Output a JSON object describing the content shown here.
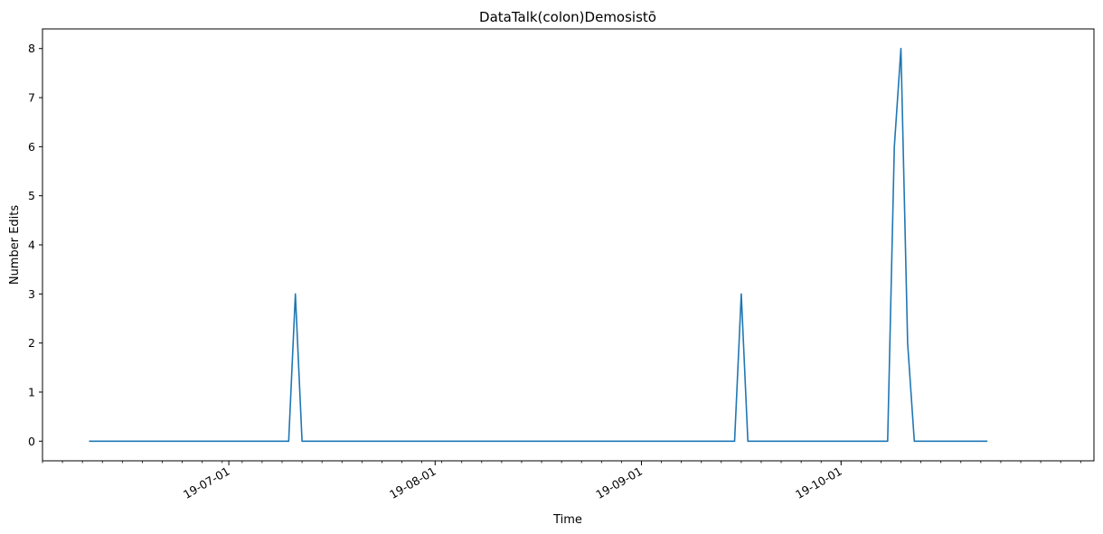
{
  "chart_data": {
    "type": "line",
    "title": "DataTalk(colon)Demosistō",
    "xlabel": "Time",
    "ylabel": "Number Edits",
    "x_tick_labels": [
      "19-07-01",
      "19-08-01",
      "19-09-01",
      "19-10-01"
    ],
    "x_tick_dates": [
      "2019-07-01",
      "2019-08-01",
      "2019-09-01",
      "2019-10-01"
    ],
    "y_ticks": [
      0,
      1,
      2,
      3,
      4,
      5,
      6,
      7,
      8
    ],
    "xlim": [
      "2019-06-03",
      "2019-11-08"
    ],
    "ylim": [
      -0.4,
      8.4
    ],
    "grid": false,
    "series": [
      {
        "color": "#1f77b4",
        "points": [
          {
            "x": "2019-06-10",
            "y": 0
          },
          {
            "x": "2019-07-10",
            "y": 0
          },
          {
            "x": "2019-07-11",
            "y": 3
          },
          {
            "x": "2019-07-12",
            "y": 0
          },
          {
            "x": "2019-09-15",
            "y": 0
          },
          {
            "x": "2019-09-16",
            "y": 3
          },
          {
            "x": "2019-09-17",
            "y": 0
          },
          {
            "x": "2019-10-08",
            "y": 0
          },
          {
            "x": "2019-10-09",
            "y": 6
          },
          {
            "x": "2019-10-10",
            "y": 8
          },
          {
            "x": "2019-10-11",
            "y": 2
          },
          {
            "x": "2019-10-12",
            "y": 0
          },
          {
            "x": "2019-10-23",
            "y": 0
          }
        ]
      }
    ]
  }
}
